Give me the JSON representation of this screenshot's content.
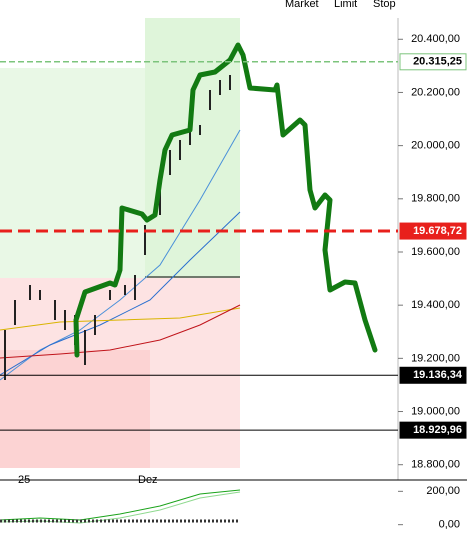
{
  "toolbar": {
    "market": "Market",
    "limit": "Limit",
    "stop": "Stop"
  },
  "price_axis": {
    "ylim": [
      18750,
      20480
    ],
    "yticks": [
      {
        "value": 20400,
        "label": "20.400,00"
      },
      {
        "value": 20200,
        "label": "20.200,00"
      },
      {
        "value": 20000,
        "label": "20.000,00"
      },
      {
        "value": 19800,
        "label": "19.800,00"
      },
      {
        "value": 19600,
        "label": "19.600,00"
      },
      {
        "value": 19400,
        "label": "19.400,00"
      },
      {
        "value": 19200,
        "label": "19.200,00"
      },
      {
        "value": 19000,
        "label": "19.000,00"
      },
      {
        "value": 18800,
        "label": "18.800,00"
      }
    ]
  },
  "price_markers": [
    {
      "value": 20315.25,
      "label": "20.315,25",
      "line_color": "#7cc47c",
      "box_color": "#ffffff",
      "text_color": "#000000",
      "dashed": true
    },
    {
      "value": 19678.72,
      "label": "19.678,72",
      "line_color": "#e8201c",
      "box_color": "#e8201c",
      "text_color": "#ffffff",
      "dashed": true
    },
    {
      "value": 19136.34,
      "label": "19.136,34",
      "line_color": "#000000",
      "box_color": "#000000",
      "text_color": "#ffffff",
      "dashed": false
    },
    {
      "value": 18929.96,
      "label": "18.929,96",
      "line_color": "#000000",
      "box_color": "#000000",
      "text_color": "#ffffff",
      "dashed": false
    }
  ],
  "time_labels": [
    "25",
    "Dez"
  ],
  "indicator_axis": {
    "ylim": [
      -50,
      250
    ],
    "yticks": [
      {
        "value": 200,
        "label": "200,00"
      },
      {
        "value": 0,
        "label": "0,00"
      }
    ]
  }
}
